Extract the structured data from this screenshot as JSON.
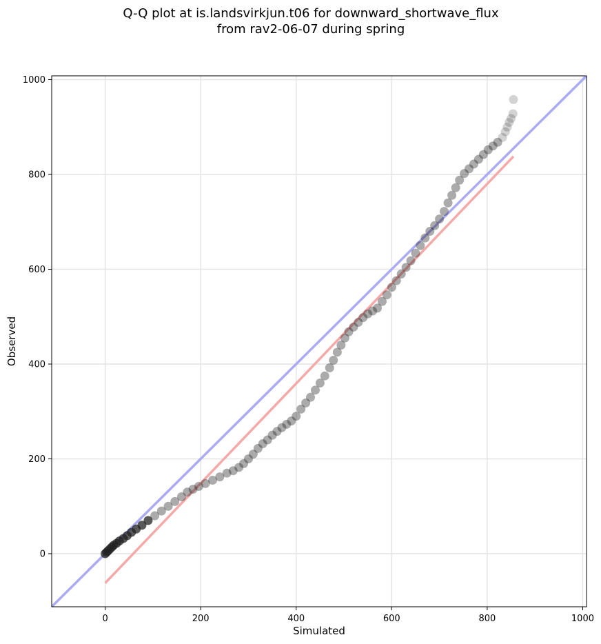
{
  "chart_data": {
    "type": "scatter",
    "title": "Q-Q plot at is.landsvirkjun.t06 for downward_shortwave_flux",
    "subtitle": "from rav2-06-07 during spring",
    "xlabel": "Simulated",
    "ylabel": "Observed",
    "xlim": [
      -112,
      1008
    ],
    "ylim": [
      -112,
      1008
    ],
    "xticks": [
      0,
      200,
      400,
      600,
      800,
      1000
    ],
    "yticks": [
      0,
      200,
      400,
      600,
      800,
      1000
    ],
    "grid": true,
    "colors": {
      "points": "#222222",
      "identity_line": "#aaaaf5",
      "fit_line": "#f5a9a9"
    },
    "identity_line": {
      "x": [
        -112,
        1008
      ],
      "y": [
        -112,
        1008
      ]
    },
    "fit_line": {
      "x": [
        0,
        855
      ],
      "y": [
        -62,
        838
      ]
    },
    "quantiles": {
      "x": [
        0,
        3,
        6,
        10,
        14,
        18,
        24,
        30,
        38,
        46,
        55,
        65,
        77,
        90,
        104,
        118,
        132,
        146,
        160,
        172,
        184,
        196,
        210,
        225,
        240,
        255,
        268,
        280,
        290,
        300,
        310,
        320,
        330,
        340,
        350,
        360,
        370,
        380,
        390,
        400,
        410,
        420,
        430,
        440,
        450,
        460,
        470,
        478,
        486,
        494,
        502,
        510,
        520,
        530,
        540,
        550,
        560,
        570,
        580,
        590,
        600,
        610,
        620,
        630,
        640,
        650,
        660,
        670,
        680,
        690,
        700,
        710,
        718,
        726,
        734,
        742,
        752,
        762,
        772,
        782,
        792,
        802,
        812,
        822,
        832,
        838,
        842,
        846,
        850,
        854,
        855
      ],
      "y": [
        0,
        3,
        6,
        10,
        14,
        18,
        22,
        27,
        32,
        38,
        45,
        52,
        60,
        70,
        80,
        90,
        100,
        110,
        120,
        130,
        136,
        142,
        148,
        155,
        162,
        170,
        175,
        182,
        190,
        200,
        210,
        222,
        232,
        240,
        250,
        258,
        266,
        273,
        280,
        290,
        305,
        318,
        330,
        345,
        360,
        375,
        392,
        408,
        425,
        440,
        455,
        468,
        478,
        488,
        498,
        506,
        512,
        518,
        532,
        546,
        562,
        576,
        590,
        604,
        618,
        634,
        650,
        666,
        680,
        692,
        706,
        722,
        740,
        756,
        772,
        788,
        802,
        812,
        822,
        832,
        842,
        852,
        860,
        868,
        878,
        890,
        900,
        910,
        918,
        928,
        958
      ]
    }
  }
}
